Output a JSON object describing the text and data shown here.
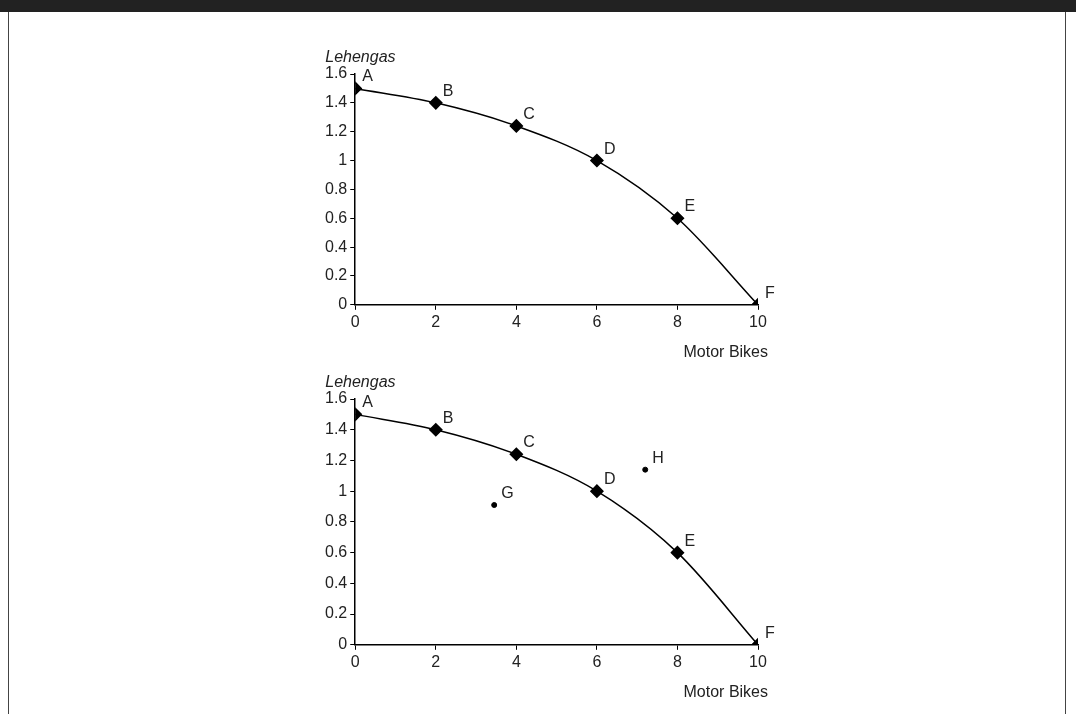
{
  "chart_data": [
    {
      "type": "line",
      "ylabel": "Lehengas",
      "xlabel": "Motor Bikes",
      "xlim": [
        0,
        10
      ],
      "xticks": [
        0,
        2,
        4,
        6,
        8,
        10
      ],
      "ylim": [
        0,
        1.6
      ],
      "yticks": [
        0,
        0.2,
        0.4,
        0.6,
        0.8,
        1,
        1.2,
        1.4,
        1.6
      ],
      "grid": false,
      "marker": "diamond",
      "series": [
        {
          "type": "line",
          "color": "#000000",
          "x": [
            0,
            2,
            4,
            6,
            8,
            10
          ],
          "values": [
            1.5,
            1.4,
            1.24,
            1,
            0.6,
            0
          ]
        }
      ],
      "annotations": [
        {
          "text": "A",
          "x": 0,
          "y": 1.5
        },
        {
          "text": "B",
          "x": 2,
          "y": 1.4
        },
        {
          "text": "C",
          "x": 4,
          "y": 1.24
        },
        {
          "text": "D",
          "x": 6,
          "y": 1
        },
        {
          "text": "E",
          "x": 8,
          "y": 0.6
        },
        {
          "text": "F",
          "x": 10,
          "y": 0
        }
      ]
    },
    {
      "type": "line",
      "ylabel": "Lehengas",
      "xlabel": "Motor Bikes",
      "xlim": [
        0,
        10
      ],
      "xticks": [
        0,
        2,
        4,
        6,
        8,
        10
      ],
      "ylim": [
        0,
        1.6
      ],
      "yticks": [
        0,
        0.2,
        0.4,
        0.6,
        0.8,
        1,
        1.2,
        1.4,
        1.6
      ],
      "grid": false,
      "marker": "diamond",
      "series": [
        {
          "type": "line",
          "color": "#000000",
          "x": [
            0,
            2,
            4,
            6,
            8,
            10
          ],
          "values": [
            1.5,
            1.4,
            1.24,
            1,
            0.6,
            0
          ]
        },
        {
          "type": "scatter",
          "color": "#000000",
          "marker": "circle",
          "x": [
            3.45,
            7.2
          ],
          "values": [
            0.91,
            1.14
          ]
        }
      ],
      "annotations": [
        {
          "text": "A",
          "x": 0,
          "y": 1.5
        },
        {
          "text": "B",
          "x": 2,
          "y": 1.4
        },
        {
          "text": "C",
          "x": 4,
          "y": 1.24
        },
        {
          "text": "D",
          "x": 6,
          "y": 1
        },
        {
          "text": "E",
          "x": 8,
          "y": 0.6
        },
        {
          "text": "F",
          "x": 10,
          "y": 0
        },
        {
          "text": "G",
          "x": 3.45,
          "y": 0.91
        },
        {
          "text": "H",
          "x": 7.2,
          "y": 1.14
        }
      ]
    }
  ]
}
